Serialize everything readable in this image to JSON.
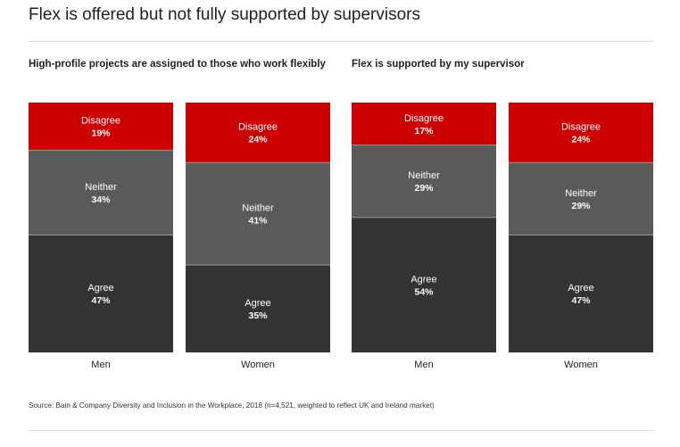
{
  "title": "Flex is offered but not fully supported by supervisors",
  "source": "Source: Bain & Company Diversity and Inclusion in the Workplace, 2018 (n=4,521, weighted to reflect UK and Ireland market)",
  "colors": {
    "disagree": "#cc0000",
    "neither": "#5a5a5a",
    "agree": "#333333",
    "segment_text": "#ffffff",
    "divider": "#9a9a9a"
  },
  "chart_data": [
    {
      "type": "bar",
      "stacked": true,
      "normalized": true,
      "title": "High-profile projects are assigned to those who work flexibly",
      "categories": [
        "Men",
        "Women"
      ],
      "series": [
        {
          "name": "Disagree",
          "values": [
            19,
            24
          ]
        },
        {
          "name": "Neither",
          "values": [
            34,
            41
          ]
        },
        {
          "name": "Agree",
          "values": [
            47,
            35
          ]
        }
      ],
      "unit": "%",
      "ylim": [
        0,
        100
      ]
    },
    {
      "type": "bar",
      "stacked": true,
      "normalized": true,
      "title": "Flex is supported by my supervisor",
      "categories": [
        "Men",
        "Women"
      ],
      "series": [
        {
          "name": "Disagree",
          "values": [
            17,
            24
          ]
        },
        {
          "name": "Neither",
          "values": [
            29,
            29
          ]
        },
        {
          "name": "Agree",
          "values": [
            54,
            47
          ]
        }
      ],
      "unit": "%",
      "ylim": [
        0,
        100
      ]
    }
  ]
}
